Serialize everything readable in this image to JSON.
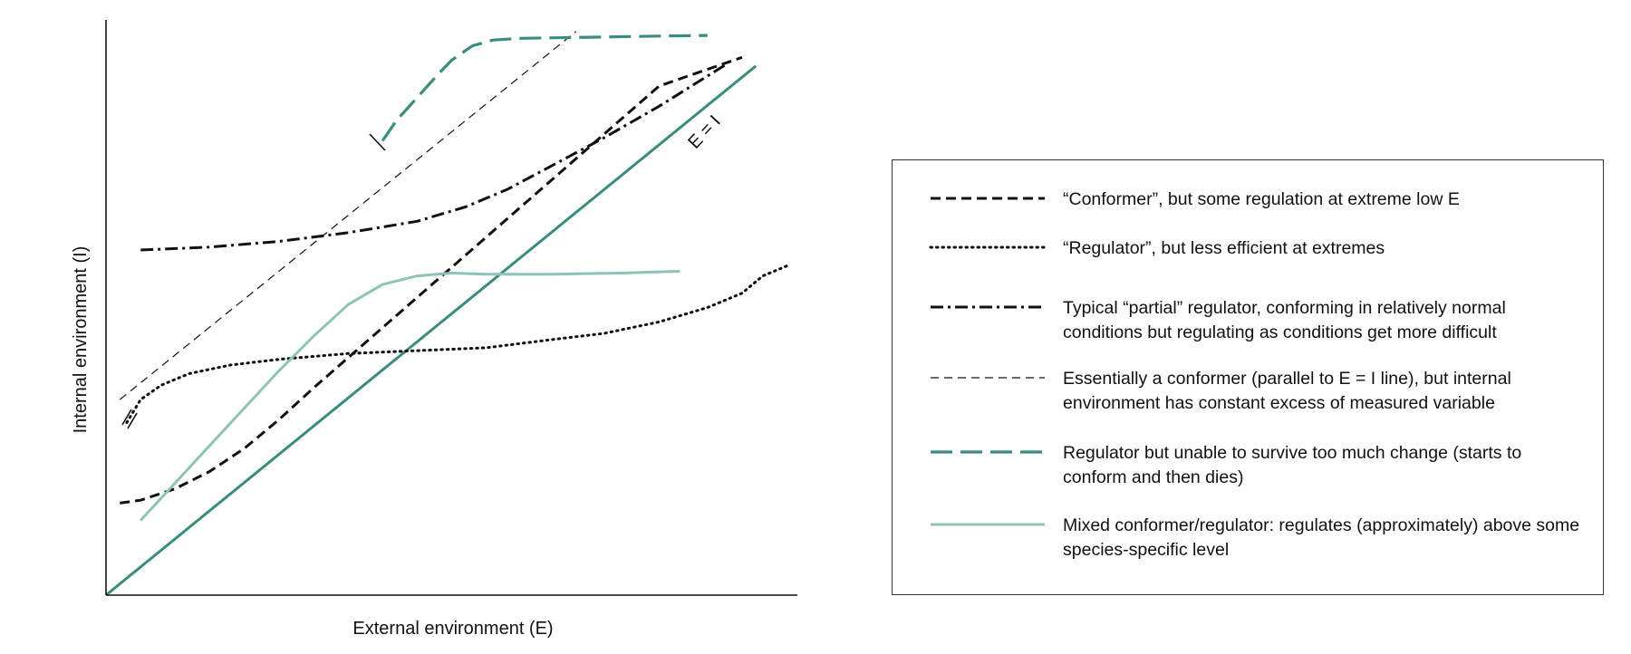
{
  "chart_data": {
    "type": "line",
    "xlabel": "External environment (E)",
    "ylabel": "Internal environment (I)",
    "xlim": [
      0,
      100
    ],
    "ylim": [
      0,
      100
    ],
    "grid": false,
    "legend_placement": "right",
    "annotations": [
      {
        "text": "E = I",
        "x": 88,
        "y": 85
      }
    ],
    "series": [
      {
        "name": "“Conformer”, but some regulation at extreme low E",
        "style": "dashed",
        "color": "#111111",
        "x": [
          2,
          5,
          10,
          15,
          20,
          25,
          30,
          40,
          50,
          60,
          70,
          80,
          92
        ],
        "y": [
          16,
          16.5,
          18.5,
          21.5,
          25.5,
          30.5,
          36,
          46.5,
          57,
          67.5,
          78,
          88.5,
          93.5
        ]
      },
      {
        "name": "“Regulator”, but less efficient at extremes",
        "style": "dotted",
        "color": "#111111",
        "x": [
          3,
          5,
          8,
          12,
          18,
          25,
          35,
          45,
          55,
          65,
          72,
          80,
          87,
          92,
          95,
          99
        ],
        "y": [
          30,
          34,
          36.5,
          38.5,
          40,
          41,
          42,
          42.5,
          43,
          44.5,
          45.5,
          47.5,
          50,
          52.5,
          55.5,
          57.5
        ]
      },
      {
        "name": "Typical “partial” regulator, conforming in relatively normal conditions but regulating as conditions get more difficult",
        "style": "dashdot",
        "color": "#111111",
        "x": [
          5,
          15,
          25,
          35,
          45,
          52,
          58,
          65,
          72,
          80,
          90
        ],
        "y": [
          60,
          60.5,
          61.5,
          63,
          65,
          67.5,
          70.5,
          75,
          79.5,
          85,
          92.5
        ]
      },
      {
        "name": "Essentially a conformer (parallel to E = I line), but internal environment has constant excess of measured variable",
        "style": "thin-dashed",
        "color": "#111111",
        "x": [
          2,
          68
        ],
        "y": [
          34,
          98
        ]
      },
      {
        "name": "Regulator but unable to survive too much change (starts to conform and then dies)",
        "style": "long-dashed",
        "color": "#3a8c7e",
        "x": [
          40,
          42,
          45,
          48,
          50,
          53,
          56,
          60,
          70,
          80,
          87
        ],
        "y": [
          79,
          82.5,
          86.5,
          90.5,
          93,
          95.5,
          96.5,
          96.8,
          97,
          97.2,
          97.3
        ]
      },
      {
        "name": "Mixed conformer/regulator: regulates (approximately) above some species-specific level",
        "style": "solid",
        "color": "#8cc4b8",
        "x": [
          5,
          10,
          15,
          20,
          25,
          30,
          35,
          40,
          45,
          50,
          55,
          60,
          65,
          70,
          75,
          80,
          83
        ],
        "y": [
          13,
          19.5,
          26,
          32.5,
          39,
          45,
          50.5,
          54,
          55.5,
          56,
          55.8,
          55.8,
          55.8,
          55.9,
          56,
          56.2,
          56.3
        ]
      },
      {
        "name": "E = I",
        "style": "solid",
        "color": "#3a8c7e",
        "x": [
          0,
          94
        ],
        "y": [
          0,
          92
        ]
      }
    ]
  },
  "legend": {
    "items": [
      {
        "text": "“Conformer”, but some regulation at extreme low E",
        "style": "dashed",
        "color": "#111111"
      },
      {
        "text": "“Regulator”, but less efficient at extremes",
        "style": "dotted",
        "color": "#111111"
      },
      {
        "text": "Typical “partial” regulator, conforming in relatively normal conditions but regulating as conditions get more difficult",
        "style": "dashdot",
        "color": "#111111"
      },
      {
        "text": "Essentially a conformer (parallel to E = I line), but internal environment has constant excess of measured variable",
        "style": "thin-dashed",
        "color": "#111111"
      },
      {
        "text": "Regulator but unable to survive too much change (starts to conform and then dies)",
        "style": "long-dashed",
        "color": "#3a8c7e"
      },
      {
        "text": "Mixed conformer/regulator: regulates (approximately) above some species-specific level",
        "style": "solid",
        "color": "#8cc4b8"
      }
    ]
  }
}
